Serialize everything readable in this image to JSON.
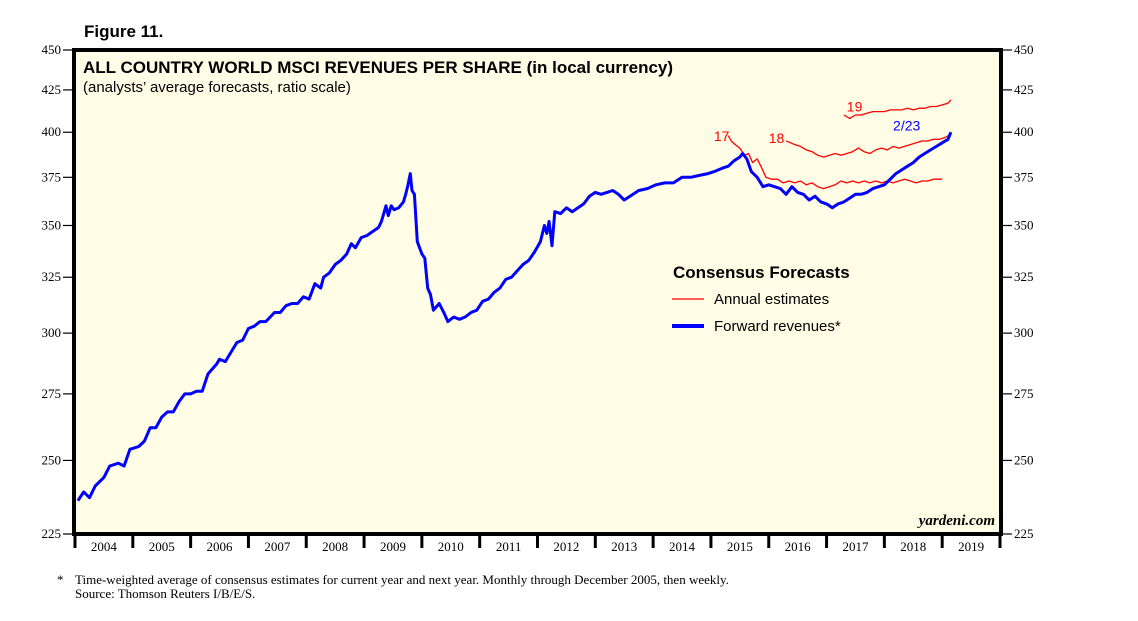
{
  "figure_label": "Figure 11.",
  "footnote": {
    "marker": "*",
    "text": "Time-weighted average of consensus estimates for current year and next year. Monthly through December 2005, then weekly.",
    "source": "Source: Thomson Reuters I/B/E/S."
  },
  "chart_data": {
    "type": "line",
    "title": "ALL COUNTRY WORLD MSCI REVENUES PER SHARE (in local currency)",
    "subtitle": "(analysts’ average forecasts, ratio scale)",
    "xlabel": "",
    "ylabel": "",
    "yscale": "log",
    "ylim": [
      225,
      450
    ],
    "xlim": [
      2004.0,
      2020.0
    ],
    "yticks": [
      225,
      250,
      275,
      300,
      325,
      350,
      375,
      400,
      425,
      450
    ],
    "xtick_labels": [
      "2004",
      "2005",
      "2006",
      "2007",
      "2008",
      "2009",
      "2010",
      "2011",
      "2012",
      "2013",
      "2014",
      "2015",
      "2016",
      "2017",
      "2018",
      "2019"
    ],
    "background_color": "#fffde6",
    "watermark": "yardeni.com",
    "legend": {
      "title": "Consensus Forecasts",
      "position": "center-right",
      "entries": [
        {
          "label": "Annual estimates",
          "color": "#ff0000",
          "style": "thin"
        },
        {
          "label": "Forward revenues*",
          "color": "#0000ff",
          "style": "thick"
        }
      ]
    },
    "annotations": [
      {
        "text": "17",
        "color": "#ff0000",
        "x": 2015.05,
        "y": 395
      },
      {
        "text": "18",
        "color": "#ff0000",
        "x": 2016.0,
        "y": 394
      },
      {
        "text": "19",
        "color": "#ff0000",
        "x": 2017.35,
        "y": 412
      },
      {
        "text": "2/23",
        "color": "#0000ff",
        "x": 2018.15,
        "y": 401
      }
    ],
    "series": [
      {
        "name": "Forward revenues*",
        "color": "#0000ff",
        "points": [
          [
            2004.05,
            236
          ],
          [
            2004.15,
            239
          ],
          [
            2004.25,
            237
          ],
          [
            2004.35,
            241
          ],
          [
            2004.5,
            244
          ],
          [
            2004.6,
            248
          ],
          [
            2004.75,
            249
          ],
          [
            2004.85,
            248
          ],
          [
            2004.95,
            254
          ],
          [
            2005.1,
            255
          ],
          [
            2005.2,
            257
          ],
          [
            2005.3,
            262
          ],
          [
            2005.4,
            262
          ],
          [
            2005.5,
            266
          ],
          [
            2005.6,
            268
          ],
          [
            2005.7,
            268
          ],
          [
            2005.8,
            272
          ],
          [
            2005.9,
            275
          ],
          [
            2006.0,
            275
          ],
          [
            2006.1,
            276
          ],
          [
            2006.2,
            276
          ],
          [
            2006.3,
            283
          ],
          [
            2006.45,
            287
          ],
          [
            2006.5,
            289
          ],
          [
            2006.6,
            288
          ],
          [
            2006.7,
            292
          ],
          [
            2006.8,
            296
          ],
          [
            2006.9,
            297
          ],
          [
            2007.0,
            302
          ],
          [
            2007.1,
            303
          ],
          [
            2007.2,
            305
          ],
          [
            2007.3,
            305
          ],
          [
            2007.45,
            309
          ],
          [
            2007.55,
            309
          ],
          [
            2007.65,
            312
          ],
          [
            2007.75,
            313
          ],
          [
            2007.85,
            313
          ],
          [
            2007.95,
            316
          ],
          [
            2008.05,
            315
          ],
          [
            2008.15,
            322
          ],
          [
            2008.25,
            320
          ],
          [
            2008.3,
            325
          ],
          [
            2008.4,
            327
          ],
          [
            2008.5,
            331
          ],
          [
            2008.6,
            333
          ],
          [
            2008.7,
            336
          ],
          [
            2008.78,
            341
          ],
          [
            2008.85,
            339
          ],
          [
            2008.95,
            344
          ],
          [
            2009.05,
            345
          ],
          [
            2009.15,
            347
          ],
          [
            2009.25,
            349
          ],
          [
            2009.3,
            352
          ],
          [
            2009.38,
            360
          ],
          [
            2009.42,
            355
          ],
          [
            2009.47,
            360
          ],
          [
            2009.52,
            358
          ],
          [
            2009.6,
            359
          ],
          [
            2009.68,
            362
          ],
          [
            2009.72,
            366
          ],
          [
            2009.76,
            371
          ],
          [
            2009.8,
            377
          ],
          [
            2009.83,
            368
          ],
          [
            2009.87,
            366
          ],
          [
            2009.92,
            342
          ],
          [
            2010.0,
            336
          ],
          [
            2010.05,
            334
          ],
          [
            2010.1,
            320
          ],
          [
            2010.15,
            317
          ],
          [
            2010.2,
            310
          ],
          [
            2010.3,
            313
          ],
          [
            2010.38,
            309
          ],
          [
            2010.45,
            305
          ],
          [
            2010.55,
            307
          ],
          [
            2010.65,
            306
          ],
          [
            2010.75,
            307
          ],
          [
            2010.85,
            309
          ],
          [
            2010.95,
            310
          ],
          [
            2011.05,
            314
          ],
          [
            2011.15,
            315
          ],
          [
            2011.25,
            318
          ],
          [
            2011.35,
            320
          ],
          [
            2011.45,
            324
          ],
          [
            2011.55,
            325
          ],
          [
            2011.65,
            328
          ],
          [
            2011.75,
            331
          ],
          [
            2011.85,
            333
          ],
          [
            2011.95,
            337
          ],
          [
            2012.05,
            342
          ],
          [
            2012.12,
            350
          ],
          [
            2012.16,
            346
          ],
          [
            2012.2,
            352
          ],
          [
            2012.25,
            340
          ],
          [
            2012.3,
            357
          ],
          [
            2012.4,
            356
          ],
          [
            2012.5,
            359
          ],
          [
            2012.6,
            357
          ],
          [
            2012.7,
            359
          ],
          [
            2012.8,
            361
          ],
          [
            2012.9,
            365
          ],
          [
            2013.0,
            367
          ],
          [
            2013.1,
            366
          ],
          [
            2013.2,
            367
          ],
          [
            2013.3,
            368
          ],
          [
            2013.4,
            366
          ],
          [
            2013.5,
            363
          ],
          [
            2013.6,
            365
          ],
          [
            2013.75,
            368
          ],
          [
            2013.9,
            369
          ],
          [
            2014.05,
            371
          ],
          [
            2014.2,
            372
          ],
          [
            2014.35,
            372
          ],
          [
            2014.5,
            375
          ],
          [
            2014.65,
            375
          ],
          [
            2014.8,
            376
          ],
          [
            2014.95,
            377
          ],
          [
            2015.05,
            378
          ],
          [
            2015.2,
            380
          ],
          [
            2015.3,
            381
          ],
          [
            2015.4,
            384
          ],
          [
            2015.5,
            386
          ],
          [
            2015.55,
            388
          ],
          [
            2015.62,
            385
          ],
          [
            2015.7,
            378
          ],
          [
            2015.8,
            375
          ],
          [
            2015.9,
            370
          ],
          [
            2016.0,
            371
          ],
          [
            2016.1,
            370
          ],
          [
            2016.2,
            369
          ],
          [
            2016.3,
            366
          ],
          [
            2016.4,
            370
          ],
          [
            2016.5,
            367
          ],
          [
            2016.6,
            366
          ],
          [
            2016.7,
            363
          ],
          [
            2016.8,
            365
          ],
          [
            2016.9,
            362
          ],
          [
            2017.0,
            361
          ],
          [
            2017.1,
            359
          ],
          [
            2017.2,
            361
          ],
          [
            2017.3,
            362
          ],
          [
            2017.4,
            364
          ],
          [
            2017.5,
            366
          ],
          [
            2017.6,
            366
          ],
          [
            2017.7,
            367
          ],
          [
            2017.8,
            369
          ],
          [
            2017.9,
            370
          ],
          [
            2018.0,
            371
          ],
          [
            2018.1,
            374
          ],
          [
            2018.2,
            377
          ],
          [
            2018.3,
            379
          ],
          [
            2018.4,
            381
          ],
          [
            2018.5,
            383
          ],
          [
            2018.6,
            386
          ],
          [
            2018.7,
            388
          ],
          [
            2018.8,
            390
          ],
          [
            2018.9,
            392
          ],
          [
            2019.0,
            394
          ],
          [
            2019.1,
            396
          ],
          [
            2019.15,
            400
          ]
        ]
      },
      {
        "name": "Annual estimates 2017",
        "color": "#ff0000",
        "points": [
          [
            2015.3,
            398
          ],
          [
            2015.35,
            395
          ],
          [
            2015.42,
            393
          ],
          [
            2015.5,
            391
          ],
          [
            2015.58,
            387
          ],
          [
            2015.65,
            388
          ],
          [
            2015.72,
            383
          ],
          [
            2015.8,
            385
          ],
          [
            2015.88,
            380
          ],
          [
            2015.95,
            375
          ],
          [
            2016.05,
            374
          ],
          [
            2016.15,
            374
          ],
          [
            2016.25,
            372
          ],
          [
            2016.35,
            373
          ],
          [
            2016.45,
            372
          ],
          [
            2016.55,
            373
          ],
          [
            2016.65,
            371
          ],
          [
            2016.75,
            372
          ],
          [
            2016.85,
            370
          ],
          [
            2016.95,
            369
          ],
          [
            2017.05,
            370
          ],
          [
            2017.15,
            371
          ],
          [
            2017.25,
            373
          ],
          [
            2017.35,
            372
          ],
          [
            2017.45,
            373
          ],
          [
            2017.55,
            372
          ],
          [
            2017.65,
            373
          ],
          [
            2017.75,
            372
          ],
          [
            2017.85,
            373
          ],
          [
            2017.95,
            372
          ],
          [
            2018.05,
            373
          ],
          [
            2018.15,
            372
          ],
          [
            2018.25,
            373
          ],
          [
            2018.35,
            374
          ],
          [
            2018.45,
            373
          ],
          [
            2018.55,
            372
          ],
          [
            2018.65,
            373
          ],
          [
            2018.75,
            373
          ],
          [
            2018.85,
            374
          ],
          [
            2019.0,
            374
          ]
        ]
      },
      {
        "name": "Annual estimates 2018",
        "color": "#ff0000",
        "points": [
          [
            2016.3,
            395
          ],
          [
            2016.38,
            394
          ],
          [
            2016.45,
            393
          ],
          [
            2016.55,
            392
          ],
          [
            2016.65,
            390
          ],
          [
            2016.75,
            389
          ],
          [
            2016.85,
            387
          ],
          [
            2016.95,
            386
          ],
          [
            2017.05,
            387
          ],
          [
            2017.15,
            388
          ],
          [
            2017.25,
            387
          ],
          [
            2017.35,
            388
          ],
          [
            2017.45,
            389
          ],
          [
            2017.55,
            391
          ],
          [
            2017.65,
            389
          ],
          [
            2017.75,
            388
          ],
          [
            2017.85,
            390
          ],
          [
            2017.95,
            391
          ],
          [
            2018.05,
            390
          ],
          [
            2018.15,
            392
          ],
          [
            2018.25,
            391
          ],
          [
            2018.35,
            392
          ],
          [
            2018.45,
            393
          ],
          [
            2018.55,
            394
          ],
          [
            2018.65,
            395
          ],
          [
            2018.75,
            395
          ],
          [
            2018.85,
            396
          ],
          [
            2018.95,
            396
          ],
          [
            2019.05,
            397
          ],
          [
            2019.15,
            399
          ]
        ]
      },
      {
        "name": "Annual estimates 2019",
        "color": "#ff0000",
        "points": [
          [
            2017.3,
            410
          ],
          [
            2017.4,
            408
          ],
          [
            2017.5,
            410
          ],
          [
            2017.6,
            410
          ],
          [
            2017.7,
            411
          ],
          [
            2017.8,
            412
          ],
          [
            2017.9,
            412
          ],
          [
            2018.0,
            412
          ],
          [
            2018.1,
            413
          ],
          [
            2018.2,
            413
          ],
          [
            2018.3,
            413
          ],
          [
            2018.4,
            414
          ],
          [
            2018.5,
            413
          ],
          [
            2018.6,
            414
          ],
          [
            2018.7,
            414
          ],
          [
            2018.8,
            415
          ],
          [
            2018.9,
            415
          ],
          [
            2019.0,
            416
          ],
          [
            2019.1,
            417
          ],
          [
            2019.15,
            419
          ]
        ]
      }
    ]
  }
}
